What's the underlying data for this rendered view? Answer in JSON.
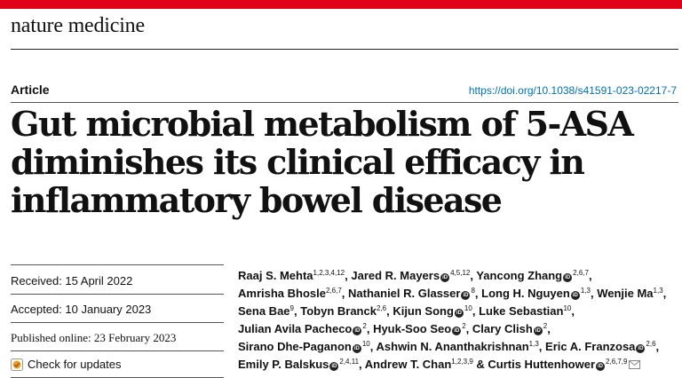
{
  "journal": "nature medicine",
  "article_type": "Article",
  "doi": "https://doi.org/10.1038/s41591-023-02217-7",
  "title_lines": [
    "Gut microbial metabolism of 5-ASA",
    "diminishes its clinical efficacy in",
    "inflammatory bowel disease"
  ],
  "dates": {
    "received": "Received: 15 April 2022",
    "accepted": "Accepted: 10 January 2023",
    "published": "Published online: 23 February 2023"
  },
  "check_updates": "Check for updates",
  "authors": [
    {
      "name": "Raaj S. Mehta",
      "sup": "1,2,3,4,12",
      "orcid": false
    },
    {
      "name": "Jared R. Mayers",
      "sup": "4,5,12",
      "orcid": true
    },
    {
      "name": "Yancong Zhang",
      "sup": "2,6,7",
      "orcid": true
    },
    {
      "name": "Amrisha Bhosle",
      "sup": "2,6,7",
      "orcid": false
    },
    {
      "name": "Nathaniel R. Glasser",
      "sup": "8",
      "orcid": true
    },
    {
      "name": "Long H. Nguyen",
      "sup": "1,3",
      "orcid": true
    },
    {
      "name": "Wenjie Ma",
      "sup": "1,3",
      "orcid": false
    },
    {
      "name": "Sena Bae",
      "sup": "9",
      "orcid": false
    },
    {
      "name": "Tobyn Branck",
      "sup": "2,6",
      "orcid": false
    },
    {
      "name": "Kijun Song",
      "sup": "10",
      "orcid": true
    },
    {
      "name": "Luke Sebastian",
      "sup": "10",
      "orcid": false
    },
    {
      "name": "Julian Avila Pacheco",
      "sup": "2",
      "orcid": true
    },
    {
      "name": "Hyuk-Soo Seo",
      "sup": "2",
      "orcid": true
    },
    {
      "name": "Clary Clish",
      "sup": "2",
      "orcid": true
    },
    {
      "name": "Sirano Dhe-Paganon",
      "sup": "10",
      "orcid": true
    },
    {
      "name": "Ashwin N. Ananthakrishnan",
      "sup": "1,3",
      "orcid": false
    },
    {
      "name": "Eric A. Franzosa",
      "sup": "2,6",
      "orcid": true
    },
    {
      "name": "Emily P. Balskus",
      "sup": "2,4,11",
      "orcid": true
    },
    {
      "name": "Andrew T. Chan",
      "sup": "1,2,3,9",
      "orcid": false
    },
    {
      "name": "Curtis Huttenhower",
      "sup": "2,6,7,9",
      "orcid": true,
      "corresponding": true
    }
  ],
  "author_separator": ", ",
  "author_last_separator": " & ",
  "orcid_glyph": "iD",
  "icons": {
    "orcid": "orcid-icon",
    "mail": "mail-icon",
    "check": "check-for-updates-icon"
  },
  "colors": {
    "accent_bar": "#e1001a",
    "link": "#0070b8"
  }
}
